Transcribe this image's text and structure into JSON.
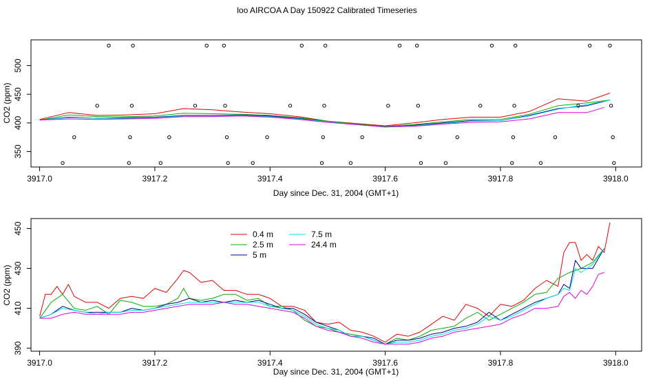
{
  "title": "loo AIRCOA A  Day 150922  Calibrated Timeseries",
  "colors": {
    "0.4 m": "#e00000",
    "2.5 m": "#00b000",
    "5 m": "#00008b",
    "7.5 m": "#00e0e0",
    "24.4 m": "#e000e0"
  },
  "chart_data": [
    {
      "type": "line",
      "panel": "top",
      "xlabel": "Day since Dec. 31, 2004 (GMT+1)",
      "ylabel": "CO2 (ppm)",
      "xlim": [
        3916.985,
        3918.045
      ],
      "ylim": [
        323,
        545
      ],
      "x_ticks": [
        "3917.0",
        "3917.2",
        "3917.4",
        "3917.6",
        "3917.8",
        "3918.0"
      ],
      "y_ticks": [
        "350",
        "400",
        "450",
        "500"
      ],
      "series": [
        {
          "name": "0.4 m",
          "color": "#e00000",
          "x": [
            3917.0,
            3917.05,
            3917.1,
            3917.15,
            3917.2,
            3917.25,
            3917.3,
            3917.35,
            3917.4,
            3917.45,
            3917.5,
            3917.55,
            3917.6,
            3917.65,
            3917.7,
            3917.75,
            3917.8,
            3917.85,
            3917.9,
            3917.95,
            3917.99
          ],
          "y": [
            406,
            418,
            413,
            414,
            416,
            425,
            423,
            419,
            416,
            411,
            403,
            399,
            395,
            400,
            406,
            410,
            410,
            420,
            442,
            438,
            452
          ]
        },
        {
          "name": "2.5 m",
          "color": "#00b000",
          "x": [
            3917.0,
            3917.05,
            3917.1,
            3917.15,
            3917.2,
            3917.25,
            3917.3,
            3917.35,
            3917.4,
            3917.45,
            3917.5,
            3917.55,
            3917.6,
            3917.65,
            3917.7,
            3917.75,
            3917.8,
            3917.85,
            3917.9,
            3917.95,
            3917.99
          ],
          "y": [
            405,
            414,
            411,
            411,
            412,
            417,
            416,
            415,
            413,
            409,
            403,
            398,
            394,
            397,
            402,
            406,
            406,
            415,
            430,
            435,
            440
          ]
        },
        {
          "name": "5 m",
          "color": "#00008b",
          "x": [
            3917.0,
            3917.05,
            3917.1,
            3917.15,
            3917.2,
            3917.25,
            3917.3,
            3917.35,
            3917.4,
            3917.45,
            3917.5,
            3917.55,
            3917.6,
            3917.65,
            3917.7,
            3917.75,
            3917.8,
            3917.85,
            3917.9,
            3917.95,
            3917.99
          ],
          "y": [
            405,
            410,
            408,
            409,
            410,
            413,
            413,
            414,
            412,
            408,
            402,
            397,
            393,
            396,
            400,
            404,
            404,
            413,
            425,
            430,
            440
          ]
        },
        {
          "name": "7.5 m",
          "color": "#00e0e0",
          "x": [
            3917.0,
            3917.05,
            3917.1,
            3917.15,
            3917.2,
            3917.25,
            3917.3,
            3917.35,
            3917.4,
            3917.45,
            3917.5,
            3917.55,
            3917.6,
            3917.65,
            3917.7,
            3917.75,
            3917.8,
            3917.85,
            3917.9,
            3917.95,
            3917.99
          ],
          "y": [
            405,
            409,
            408,
            408,
            409,
            412,
            412,
            413,
            411,
            407,
            402,
            397,
            393,
            395,
            399,
            403,
            404,
            412,
            424,
            432,
            440
          ]
        },
        {
          "name": "24.4 m",
          "color": "#e000e0",
          "x": [
            3917.0,
            3917.05,
            3917.1,
            3917.15,
            3917.2,
            3917.25,
            3917.3,
            3917.35,
            3917.4,
            3917.45,
            3917.5,
            3917.55,
            3917.6,
            3917.65,
            3917.7,
            3917.75,
            3917.8,
            3917.85,
            3917.9,
            3917.95,
            3917.98
          ],
          "y": [
            405,
            407,
            406,
            407,
            408,
            411,
            411,
            412,
            410,
            406,
            401,
            397,
            393,
            394,
            398,
            401,
            402,
            407,
            418,
            418,
            427
          ]
        }
      ],
      "markers": {
        "x": [
          3917.04,
          3917.06,
          3917.1,
          3917.12,
          3917.155,
          3917.157,
          3917.16,
          3917.162,
          3917.21,
          3917.225,
          3917.27,
          3917.29,
          3917.32,
          3917.322,
          3917.325,
          3917.327,
          3917.37,
          3917.395,
          3917.435,
          3917.455,
          3917.49,
          3917.492,
          3917.494,
          3917.496,
          3917.54,
          3917.56,
          3917.605,
          3917.625,
          3917.655,
          3917.657,
          3917.66,
          3917.662,
          3917.705,
          3917.725,
          3917.765,
          3917.785,
          3917.82,
          3917.822,
          3917.824,
          3917.826,
          3917.87,
          3917.895,
          3917.935,
          3917.955,
          3917.99,
          3917.992,
          3917.995,
          3917.997
        ],
        "y": [
          330,
          375,
          430,
          535,
          330,
          375,
          430,
          535,
          330,
          375,
          430,
          535,
          535,
          430,
          375,
          330,
          330,
          375,
          430,
          535,
          330,
          375,
          430,
          535,
          330,
          375,
          430,
          535,
          535,
          430,
          375,
          330,
          330,
          375,
          430,
          535,
          330,
          375,
          430,
          535,
          330,
          375,
          430,
          535,
          535,
          430,
          375,
          330
        ]
      }
    },
    {
      "type": "line",
      "panel": "bottom",
      "xlabel": "Day since Dec. 31, 2004 (GMT+1)",
      "ylabel": "CO2 (ppm)",
      "xlim": [
        3916.985,
        3918.045
      ],
      "ylim": [
        388.5,
        455
      ],
      "x_ticks": [
        "3917.0",
        "3917.2",
        "3917.4",
        "3917.6",
        "3917.8",
        "3918.0"
      ],
      "y_ticks": [
        "390",
        "410",
        "430",
        "450"
      ],
      "legend": "top-left",
      "series": [
        {
          "name": "0.4 m",
          "color": "#e00000",
          "x": [
            3917.0,
            3917.01,
            3917.02,
            3917.03,
            3917.04,
            3917.05,
            3917.06,
            3917.08,
            3917.1,
            3917.12,
            3917.14,
            3917.16,
            3917.18,
            3917.2,
            3917.22,
            3917.24,
            3917.25,
            3917.26,
            3917.28,
            3917.3,
            3917.32,
            3917.34,
            3917.36,
            3917.38,
            3917.4,
            3917.42,
            3917.44,
            3917.46,
            3917.48,
            3917.5,
            3917.52,
            3917.54,
            3917.56,
            3917.58,
            3917.6,
            3917.62,
            3917.64,
            3917.66,
            3917.68,
            3917.7,
            3917.72,
            3917.74,
            3917.76,
            3917.78,
            3917.8,
            3917.82,
            3917.84,
            3917.86,
            3917.88,
            3917.9,
            3917.91,
            3917.92,
            3917.93,
            3917.94,
            3917.95,
            3917.96,
            3917.97,
            3917.98,
            3917.99
          ],
          "y": [
            406,
            417,
            417,
            421,
            417,
            422,
            416,
            413,
            413,
            410,
            415,
            416,
            415,
            420,
            418,
            425,
            429,
            428,
            423,
            424,
            419,
            419,
            417,
            417,
            415,
            411,
            411,
            409,
            403,
            402,
            403,
            399,
            398,
            396,
            393,
            397,
            396,
            398,
            402,
            406,
            404,
            412,
            410,
            406,
            412,
            411,
            414,
            420,
            424,
            421,
            438,
            443,
            443,
            434,
            437,
            434,
            441,
            438,
            453
          ]
        },
        {
          "name": "2.5 m",
          "color": "#00b000",
          "x": [
            3917.0,
            3917.02,
            3917.04,
            3917.06,
            3917.08,
            3917.1,
            3917.12,
            3917.14,
            3917.16,
            3917.18,
            3917.2,
            3917.22,
            3917.24,
            3917.25,
            3917.26,
            3917.28,
            3917.3,
            3917.32,
            3917.34,
            3917.36,
            3917.38,
            3917.4,
            3917.42,
            3917.44,
            3917.46,
            3917.48,
            3917.5,
            3917.52,
            3917.54,
            3917.56,
            3917.58,
            3917.6,
            3917.62,
            3917.64,
            3917.66,
            3917.68,
            3917.7,
            3917.72,
            3917.74,
            3917.76,
            3917.78,
            3917.8,
            3917.82,
            3917.84,
            3917.86,
            3917.88,
            3917.9,
            3917.92,
            3917.94,
            3917.96,
            3917.98
          ],
          "y": [
            405,
            413,
            417,
            410,
            409,
            411,
            407,
            414,
            413,
            411,
            411,
            412,
            415,
            420,
            415,
            414,
            415,
            417,
            417,
            414,
            415,
            411,
            411,
            409,
            404,
            401,
            400,
            398,
            397,
            396,
            394,
            392,
            395,
            394,
            396,
            399,
            400,
            401,
            405,
            408,
            404,
            407,
            410,
            413,
            417,
            418,
            425,
            428,
            430,
            433,
            440
          ]
        },
        {
          "name": "5 m",
          "color": "#00008b",
          "x": [
            3917.0,
            3917.02,
            3917.04,
            3917.06,
            3917.08,
            3917.1,
            3917.12,
            3917.14,
            3917.16,
            3917.18,
            3917.2,
            3917.22,
            3917.24,
            3917.26,
            3917.28,
            3917.3,
            3917.32,
            3917.34,
            3917.36,
            3917.38,
            3917.4,
            3917.42,
            3917.44,
            3917.46,
            3917.48,
            3917.5,
            3917.52,
            3917.54,
            3917.56,
            3917.58,
            3917.6,
            3917.62,
            3917.64,
            3917.66,
            3917.68,
            3917.7,
            3917.72,
            3917.74,
            3917.76,
            3917.78,
            3917.8,
            3917.82,
            3917.84,
            3917.86,
            3917.88,
            3917.9,
            3917.91,
            3917.92,
            3917.93,
            3917.94,
            3917.96,
            3917.98
          ],
          "y": [
            405,
            407,
            411,
            409,
            408,
            408,
            408,
            408,
            410,
            409,
            410,
            412,
            413,
            415,
            413,
            414,
            413,
            414,
            413,
            414,
            412,
            410,
            410,
            407,
            403,
            401,
            399,
            396,
            396,
            395,
            392,
            394,
            394,
            395,
            397,
            398,
            400,
            401,
            403,
            408,
            404,
            407,
            410,
            413,
            415,
            417,
            422,
            420,
            434,
            430,
            430,
            440
          ]
        },
        {
          "name": "7.5 m",
          "color": "#00e0e0",
          "x": [
            3917.0,
            3917.02,
            3917.04,
            3917.06,
            3917.08,
            3917.1,
            3917.12,
            3917.14,
            3917.16,
            3917.18,
            3917.2,
            3917.22,
            3917.24,
            3917.26,
            3917.28,
            3917.3,
            3917.32,
            3917.34,
            3917.36,
            3917.38,
            3917.4,
            3917.42,
            3917.44,
            3917.46,
            3917.48,
            3917.5,
            3917.52,
            3917.54,
            3917.56,
            3917.58,
            3917.6,
            3917.62,
            3917.64,
            3917.66,
            3917.68,
            3917.7,
            3917.72,
            3917.74,
            3917.76,
            3917.78,
            3917.8,
            3917.82,
            3917.84,
            3917.86,
            3917.88,
            3917.9,
            3917.91,
            3917.92,
            3917.93,
            3917.94,
            3917.96,
            3917.98
          ],
          "y": [
            405,
            407,
            410,
            409,
            408,
            407,
            408,
            408,
            409,
            409,
            410,
            411,
            412,
            413,
            413,
            413,
            413,
            413,
            413,
            413,
            411,
            410,
            409,
            406,
            402,
            400,
            399,
            396,
            396,
            394,
            392,
            393,
            393,
            394,
            396,
            397,
            399,
            400,
            402,
            406,
            404,
            406,
            409,
            412,
            415,
            417,
            420,
            419,
            430,
            428,
            432,
            440
          ]
        },
        {
          "name": "24.4 m",
          "color": "#e000e0",
          "x": [
            3917.0,
            3917.02,
            3917.04,
            3917.06,
            3917.08,
            3917.1,
            3917.12,
            3917.14,
            3917.16,
            3917.18,
            3917.2,
            3917.22,
            3917.24,
            3917.26,
            3917.28,
            3917.3,
            3917.32,
            3917.34,
            3917.36,
            3917.38,
            3917.4,
            3917.42,
            3917.44,
            3917.46,
            3917.48,
            3917.5,
            3917.52,
            3917.54,
            3917.56,
            3917.58,
            3917.6,
            3917.62,
            3917.64,
            3917.66,
            3917.68,
            3917.7,
            3917.72,
            3917.74,
            3917.76,
            3917.78,
            3917.8,
            3917.82,
            3917.84,
            3917.86,
            3917.88,
            3917.9,
            3917.91,
            3917.92,
            3917.93,
            3917.94,
            3917.95,
            3917.96,
            3917.97,
            3917.98
          ],
          "y": [
            405,
            405,
            407,
            408,
            407,
            407,
            407,
            407,
            408,
            408,
            409,
            410,
            411,
            412,
            412,
            412,
            413,
            412,
            412,
            411,
            410,
            409,
            408,
            405,
            401,
            399,
            398,
            396,
            395,
            393,
            392,
            392,
            392,
            393,
            395,
            396,
            398,
            399,
            400,
            401,
            402,
            405,
            407,
            410,
            410,
            411,
            416,
            418,
            415,
            419,
            417,
            421,
            427,
            428
          ]
        }
      ]
    }
  ]
}
